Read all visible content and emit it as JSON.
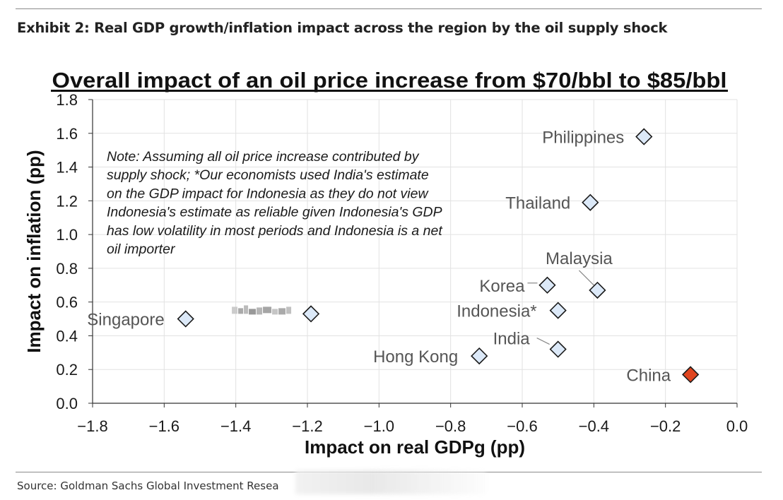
{
  "header": {
    "exhibit_title": "Exhibit 2: Real GDP growth/inflation impact across the region by the oil supply shock"
  },
  "footer": {
    "source": "Source: Goldman Sachs Global Investment Resea"
  },
  "chart_data": {
    "type": "scatter",
    "title": "Overall impact of an oil price increase from $70/bbl to $85/bbl",
    "xlabel": "Impact on real GDPg (pp)",
    "ylabel": "Impact on inflation (pp)",
    "xlim": [
      -1.8,
      0.0
    ],
    "ylim": [
      0.0,
      1.8
    ],
    "xticks": [
      "−1.8",
      "−1.6",
      "−1.4",
      "−1.2",
      "−1.0",
      "−0.8",
      "−0.6",
      "−0.4",
      "−0.2",
      "0.0"
    ],
    "yticks": [
      "0.0",
      "0.2",
      "0.4",
      "0.6",
      "0.8",
      "1.0",
      "1.2",
      "1.4",
      "1.6",
      "1.8"
    ],
    "grid": true,
    "note": [
      "Note: Assuming all oil price increase contributed by",
      "supply shock; *Our economists used India's estimate",
      "on the GDP impact for Indonesia as they do not view",
      "Indonesia's estimate as reliable given Indonesia's GDP",
      "has low volatility in most periods and Indonesia is a net",
      "oil importer"
    ],
    "points": [
      {
        "label": "Philippines",
        "x": -0.26,
        "y": 1.58,
        "color": "#dce9f8"
      },
      {
        "label": "Thailand",
        "x": -0.41,
        "y": 1.19,
        "color": "#dce9f8"
      },
      {
        "label": "Malaysia",
        "x": -0.39,
        "y": 0.67,
        "color": "#dce9f8"
      },
      {
        "label": "Korea",
        "x": -0.53,
        "y": 0.7,
        "color": "#dce9f8"
      },
      {
        "label": "Indonesia*",
        "x": -0.5,
        "y": 0.55,
        "color": "#dce9f8"
      },
      {
        "label": "India",
        "x": -0.5,
        "y": 0.32,
        "color": "#dce9f8"
      },
      {
        "label": "Hong Kong",
        "x": -0.72,
        "y": 0.28,
        "color": "#dce9f8"
      },
      {
        "label": "Singapore",
        "x": -1.54,
        "y": 0.5,
        "color": "#dce9f8"
      },
      {
        "label": "",
        "x": -1.19,
        "y": 0.53,
        "color": "#dce9f8"
      },
      {
        "label": "China",
        "x": -0.13,
        "y": 0.17,
        "color": "#e0451f"
      }
    ]
  }
}
